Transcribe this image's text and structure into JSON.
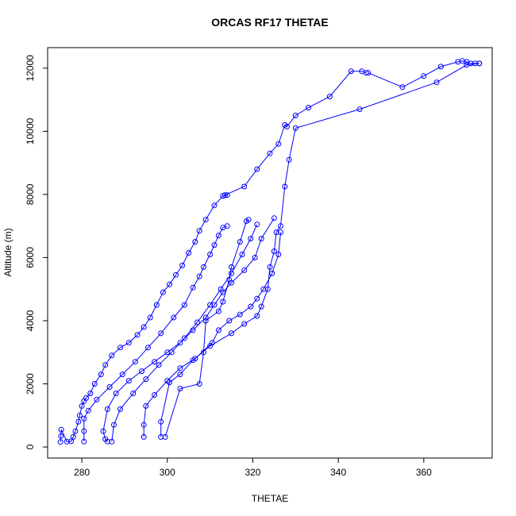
{
  "chart_data": {
    "type": "line",
    "title": "ORCAS RF17 THETAE",
    "xlabel": "THETAE",
    "ylabel": "Altitude (m)",
    "xlim": [
      272,
      376
    ],
    "ylim": [
      -350,
      12650
    ],
    "xticks": [
      280,
      300,
      320,
      340,
      360
    ],
    "yticks": [
      0,
      2000,
      4000,
      6000,
      8000,
      10000,
      12000
    ],
    "grid": false,
    "line_color": "#0000ff",
    "markers": "open-circle",
    "series": [
      {
        "values": [
          [
            275.0,
            160
          ],
          [
            275.1,
            350
          ],
          [
            275.2,
            550
          ],
          [
            276.5,
            170
          ],
          [
            277.5,
            180
          ],
          [
            278.0,
            320
          ],
          [
            278.5,
            500
          ],
          [
            279.2,
            800
          ],
          [
            279.5,
            1000
          ],
          [
            280.0,
            1300
          ],
          [
            280.5,
            1450
          ],
          [
            281.0,
            1550
          ],
          [
            282.0,
            1700
          ],
          [
            283.0,
            2000
          ],
          [
            284.5,
            2300
          ],
          [
            285.5,
            2600
          ],
          [
            287.0,
            2900
          ],
          [
            289.0,
            3150
          ],
          [
            291.0,
            3300
          ],
          [
            293.0,
            3550
          ],
          [
            294.5,
            3800
          ],
          [
            296.0,
            4100
          ],
          [
            297.5,
            4500
          ],
          [
            299.0,
            4900
          ],
          [
            300.5,
            5150
          ],
          [
            302.0,
            5450
          ],
          [
            303.5,
            5750
          ],
          [
            305.0,
            6150
          ],
          [
            306.5,
            6500
          ],
          [
            307.5,
            6850
          ],
          [
            309.0,
            7200
          ],
          [
            311.0,
            7650
          ],
          [
            313.0,
            7950
          ],
          [
            314.0,
            7980
          ]
        ]
      },
      {
        "values": [
          [
            313.5,
            7980
          ],
          [
            318.0,
            8250
          ],
          [
            321.0,
            8800
          ],
          [
            324.0,
            9300
          ],
          [
            326.0,
            9600
          ],
          [
            327.5,
            10200
          ],
          [
            328.0,
            10150
          ],
          [
            330.0,
            10500
          ],
          [
            333.0,
            10750
          ],
          [
            338.0,
            11100
          ],
          [
            343.0,
            11900
          ],
          [
            345.5,
            11900
          ],
          [
            346.5,
            11850
          ]
        ]
      },
      {
        "values": [
          [
            347.0,
            11850
          ],
          [
            355.0,
            11400
          ],
          [
            360.0,
            11750
          ],
          [
            364.0,
            12050
          ],
          [
            368.0,
            12200
          ],
          [
            369.0,
            12230
          ],
          [
            370.0,
            12200
          ],
          [
            371.0,
            12150
          ],
          [
            372.0,
            12150
          ],
          [
            373.0,
            12150
          ]
        ]
      },
      {
        "values": [
          [
            373.0,
            12150
          ],
          [
            370.0,
            12100
          ],
          [
            363.0,
            11550
          ],
          [
            345.0,
            10700
          ],
          [
            330.0,
            10100
          ],
          [
            328.5,
            9100
          ],
          [
            327.5,
            8250
          ],
          [
            326.5,
            7000
          ],
          [
            325.5,
            6800
          ],
          [
            325.0,
            6200
          ],
          [
            324.0,
            5700
          ],
          [
            323.5,
            5000
          ],
          [
            322.0,
            4450
          ],
          [
            321.0,
            4150
          ],
          [
            318.0,
            3900
          ],
          [
            315.0,
            3600
          ],
          [
            310.0,
            3200
          ],
          [
            306.0,
            2750
          ],
          [
            303.0,
            2300
          ],
          [
            300.5,
            2050
          ],
          [
            298.5,
            800
          ],
          [
            298.5,
            320
          ]
        ]
      },
      {
        "values": [
          [
            299.5,
            320
          ],
          [
            303.0,
            1850
          ],
          [
            307.5,
            2000
          ],
          [
            308.5,
            3000
          ],
          [
            309.0,
            4000
          ],
          [
            312.0,
            4300
          ],
          [
            313.0,
            4600
          ],
          [
            314.5,
            5300
          ],
          [
            315.0,
            5700
          ],
          [
            317.0,
            6500
          ],
          [
            318.5,
            7150
          ],
          [
            319.0,
            7200
          ]
        ]
      },
      {
        "values": [
          [
            325.0,
            7250
          ],
          [
            322.0,
            6600
          ],
          [
            320.5,
            6000
          ],
          [
            318.0,
            5600
          ],
          [
            315.0,
            5200
          ],
          [
            313.0,
            4900
          ],
          [
            311.0,
            4500
          ],
          [
            309.0,
            4100
          ],
          [
            306.0,
            3700
          ],
          [
            303.0,
            3300
          ],
          [
            300.0,
            3000
          ],
          [
            297.0,
            2700
          ],
          [
            294.0,
            2400
          ],
          [
            291.0,
            2100
          ],
          [
            288.0,
            1700
          ],
          [
            286.0,
            1200
          ],
          [
            285.0,
            500
          ],
          [
            285.5,
            250
          ],
          [
            286.0,
            170
          ]
        ]
      },
      {
        "values": [
          [
            287.0,
            170
          ],
          [
            287.5,
            700
          ],
          [
            289.0,
            1200
          ],
          [
            292.0,
            1700
          ],
          [
            295.0,
            2150
          ],
          [
            298.0,
            2600
          ],
          [
            301.0,
            3000
          ],
          [
            304.0,
            3450
          ],
          [
            307.0,
            3950
          ],
          [
            310.0,
            4500
          ],
          [
            312.5,
            5000
          ],
          [
            315.0,
            5500
          ],
          [
            317.5,
            6100
          ],
          [
            319.5,
            6600
          ],
          [
            321.0,
            7050
          ]
        ]
      },
      {
        "values": [
          [
            294.5,
            320
          ],
          [
            294.5,
            700
          ],
          [
            295.0,
            1300
          ],
          [
            297.0,
            1650
          ],
          [
            300.0,
            2100
          ],
          [
            303.0,
            2500
          ],
          [
            306.5,
            2800
          ],
          [
            310.5,
            3300
          ],
          [
            312.0,
            3700
          ],
          [
            314.5,
            4000
          ],
          [
            317.0,
            4200
          ],
          [
            319.5,
            4450
          ],
          [
            321.0,
            4700
          ],
          [
            322.5,
            5000
          ],
          [
            324.5,
            5500
          ],
          [
            326.0,
            6100
          ],
          [
            326.5,
            6800
          ]
        ]
      },
      {
        "values": [
          [
            280.5,
            170
          ],
          [
            280.5,
            500
          ],
          [
            280.5,
            900
          ],
          [
            281.5,
            1150
          ],
          [
            283.5,
            1500
          ],
          [
            286.5,
            1900
          ],
          [
            289.5,
            2300
          ],
          [
            292.5,
            2700
          ],
          [
            295.5,
            3150
          ],
          [
            298.5,
            3600
          ],
          [
            301.5,
            4100
          ],
          [
            304.0,
            4500
          ],
          [
            306.0,
            5050
          ],
          [
            307.5,
            5400
          ],
          [
            308.5,
            5700
          ],
          [
            310.0,
            6100
          ],
          [
            311.0,
            6400
          ],
          [
            312.0,
            6700
          ],
          [
            313.0,
            6950
          ],
          [
            314.0,
            7000
          ]
        ]
      }
    ]
  }
}
